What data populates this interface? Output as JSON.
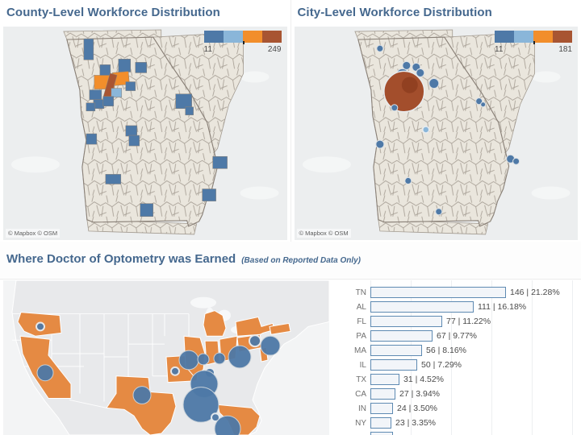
{
  "colors": {
    "title_blue": "#45688E",
    "blue": "#4E79A7",
    "light_blue": "#8AB6D9",
    "orange": "#F28E2B",
    "red_brown": "#A85532",
    "big_circle_red": "#A34E2C",
    "ga_county_fill": "#EAE6DD",
    "ga_county_line": "#A39B91",
    "ga_state_border": "#8A8178",
    "map_background": "#ECEEEF",
    "us_land": "#E8E9EB",
    "us_orange_state": "#E58A43",
    "bar_fill": "#F2F5F9",
    "bar_border": "#5E8AB2"
  },
  "panels": {
    "county": {
      "title": "County-Level Workforce Distribution",
      "legend_min": "11",
      "legend_max": "249",
      "legend_colors": [
        "#4E79A7",
        "#8AB6D9",
        "#F28E2B",
        "#A85532"
      ],
      "attribution": "© Mapbox  © OSM"
    },
    "city": {
      "title": "City-Level Workforce Distribution",
      "legend_min": "11",
      "legend_max": "181",
      "legend_colors": [
        "#4E79A7",
        "#8AB6D9",
        "#F28E2B",
        "#A85532"
      ],
      "attribution": "© Mapbox  © OSM"
    },
    "education": {
      "title": "Where Doctor of Optometry was Earned",
      "subtitle": "(Based on Reported Data Only)"
    }
  },
  "chart_data": [
    {
      "type": "choropleth_map",
      "title": "County-Level Workforce Distribution",
      "region": "Georgia counties",
      "legend": {
        "min": 11,
        "max": 249,
        "palette": [
          "#4E79A7",
          "#8AB6D9",
          "#F28E2B",
          "#A85532"
        ]
      },
      "highlight_note": "approx pixel positions of colored counties: [x,y,w,h,color,rotation]; b=blue lb=light-blue o=orange r=red-brown",
      "highlights": [
        [
          100,
          15,
          12,
          26,
          "b",
          0
        ],
        [
          120,
          47,
          13,
          15,
          "b",
          0
        ],
        [
          143,
          40,
          15,
          16,
          "b",
          0
        ],
        [
          164,
          44,
          14,
          13,
          "b",
          0
        ],
        [
          113,
          60,
          25,
          17,
          "o",
          0
        ],
        [
          136,
          56,
          20,
          16,
          "o",
          -5
        ],
        [
          128,
          58,
          9,
          32,
          "r",
          16
        ],
        [
          134,
          76,
          13,
          11,
          "lb",
          0
        ],
        [
          107,
          78,
          15,
          12,
          "b",
          0
        ],
        [
          112,
          90,
          13,
          11,
          "b",
          0
        ],
        [
          124,
          86,
          13,
          12,
          "b",
          0
        ],
        [
          103,
          94,
          11,
          10,
          "b",
          0
        ],
        [
          152,
          68,
          12,
          11,
          "b",
          0
        ],
        [
          214,
          83,
          20,
          18,
          "b",
          0
        ],
        [
          226,
          99,
          10,
          10,
          "b",
          0
        ],
        [
          152,
          122,
          14,
          13,
          "b",
          0
        ],
        [
          156,
          134,
          13,
          13,
          "b",
          0
        ],
        [
          103,
          132,
          13,
          13,
          "b",
          0
        ],
        [
          127,
          182,
          19,
          12,
          "b",
          0
        ],
        [
          170,
          218,
          16,
          16,
          "b",
          0
        ],
        [
          260,
          160,
          18,
          15,
          "b",
          0
        ],
        [
          247,
          200,
          17,
          15,
          "b",
          0
        ]
      ]
    },
    {
      "type": "symbol_map",
      "title": "City-Level Workforce Distribution",
      "region": "Georgia cities",
      "legend": {
        "min": 11,
        "max": 181,
        "palette": [
          "#4E79A7",
          "#8AB6D9",
          "#F28E2B",
          "#A85532"
        ]
      },
      "point_note": "[cx,cy,r,kind]; b=blue circle, lb=light-blue, R=large red-brown (Atlanta), R2=darker overlap",
      "points": [
        [
          106,
          27,
          4,
          "b"
        ],
        [
          139,
          48,
          5,
          "b"
        ],
        [
          151,
          50,
          5,
          "b"
        ],
        [
          134,
          60,
          8,
          "b"
        ],
        [
          156,
          57,
          5,
          "b"
        ],
        [
          146,
          63,
          6,
          "b"
        ],
        [
          124,
          63,
          5,
          "b"
        ],
        [
          129,
          68,
          4,
          "b"
        ],
        [
          136,
          80,
          25,
          "R"
        ],
        [
          143,
          72,
          10,
          "R2"
        ],
        [
          173,
          70,
          6,
          "b"
        ],
        [
          124,
          100,
          4,
          "b"
        ],
        [
          163,
          127,
          4,
          "lb"
        ],
        [
          106,
          145,
          5,
          "b"
        ],
        [
          229,
          92,
          4,
          "b"
        ],
        [
          234,
          96,
          3,
          "b"
        ],
        [
          268,
          163,
          5,
          "b"
        ],
        [
          275,
          166,
          4,
          "b"
        ],
        [
          141,
          190,
          4,
          "b"
        ],
        [
          179,
          228,
          4,
          "b"
        ]
      ]
    },
    {
      "type": "symbol_map",
      "title": "Where Doctor of Optometry was Earned",
      "region": "United States",
      "orange_states": [
        "OR",
        "CA",
        "TX",
        "MO",
        "IL",
        "IN",
        "OH",
        "MI",
        "PA",
        "NY",
        "MA",
        "NJ",
        "FL"
      ],
      "point_note": "[cx,cy,r,kind]; b=blue circle, rim=blue circle with light rim",
      "points": [
        [
          46,
          58,
          5,
          "rim"
        ],
        [
          52,
          116,
          10,
          "b"
        ],
        [
          172,
          144,
          11,
          "b"
        ],
        [
          213,
          114,
          5,
          "rim"
        ],
        [
          230,
          100,
          12,
          "b"
        ],
        [
          248,
          99,
          7,
          "b"
        ],
        [
          268,
          98,
          7,
          "b"
        ],
        [
          293,
          96,
          14,
          "b"
        ],
        [
          312,
          76,
          7,
          "rim"
        ],
        [
          331,
          82,
          12,
          "b"
        ],
        [
          256,
          116,
          6,
          "rim"
        ],
        [
          249,
          130,
          17,
          "b"
        ],
        [
          245,
          156,
          22,
          "b"
        ],
        [
          263,
          172,
          5,
          "rim"
        ],
        [
          278,
          186,
          16,
          "b"
        ]
      ]
    },
    {
      "type": "bar",
      "title": "Where Doctor of Optometry was Earned",
      "categories": [
        "TN",
        "AL",
        "FL",
        "PA",
        "MA",
        "IL",
        "TX",
        "CA",
        "IN",
        "NY"
      ],
      "values": [
        146,
        111,
        77,
        67,
        56,
        50,
        31,
        27,
        24,
        23
      ],
      "pcts": [
        "21.28%",
        "16.18%",
        "11.22%",
        "9.77%",
        "8.16%",
        "7.29%",
        "4.52%",
        "3.94%",
        "3.50%",
        "3.35%"
      ],
      "label_separator": " | ",
      "xmax": 146,
      "grid": true,
      "partial_row_visible": true
    }
  ]
}
